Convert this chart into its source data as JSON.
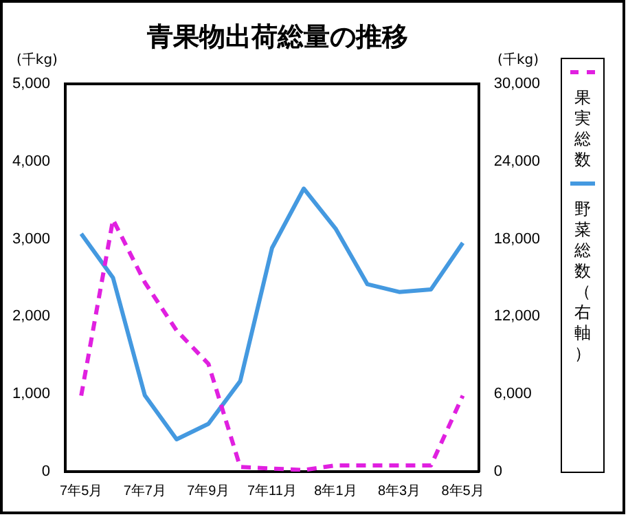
{
  "chart_data": {
    "type": "line",
    "title": "青果物出荷総量の推移",
    "ylabel": "(千kg)",
    "y2label": "(千kg)",
    "categories": [
      "7年5月",
      null,
      "7年7月",
      null,
      "7年9月",
      null,
      "7年11月",
      null,
      "8年1月",
      null,
      "8年3月",
      null,
      "8年5月"
    ],
    "series": [
      {
        "name": "果実総数",
        "color": "#e020e0",
        "line_style": "dashed",
        "values": [
          980,
          3250,
          2440,
          1820,
          1390,
          60,
          40,
          20,
          80,
          80,
          80,
          80,
          980
        ]
      },
      {
        "name": "野菜総数（右軸）",
        "color": "#4499e0",
        "line_style": "solid",
        "axis": "y2",
        "values": [
          18400,
          15000,
          5900,
          2500,
          3700,
          7000,
          17300,
          21900,
          18800,
          14500,
          13900,
          14100,
          17700
        ]
      }
    ],
    "ylim": [
      0,
      5000
    ],
    "yticks": [
      {
        "value": 0,
        "label": "0"
      },
      {
        "value": 1000,
        "label": "1,000"
      },
      {
        "value": 2000,
        "label": "2,000"
      },
      {
        "value": 3000,
        "label": "3,000"
      },
      {
        "value": 4000,
        "label": "4,000"
      },
      {
        "value": 5000,
        "label": "5,000"
      }
    ],
    "y2lim": [
      0,
      30000
    ],
    "y2ticks": [
      {
        "value": 0,
        "label": "0"
      },
      {
        "value": 6000,
        "label": "6,000"
      },
      {
        "value": 12000,
        "label": "12,000"
      },
      {
        "value": 18000,
        "label": "18,000"
      },
      {
        "value": 24000,
        "label": "24,000"
      },
      {
        "value": 30000,
        "label": "30,000"
      }
    ],
    "grid": false,
    "legend": "right",
    "marker": "none"
  }
}
